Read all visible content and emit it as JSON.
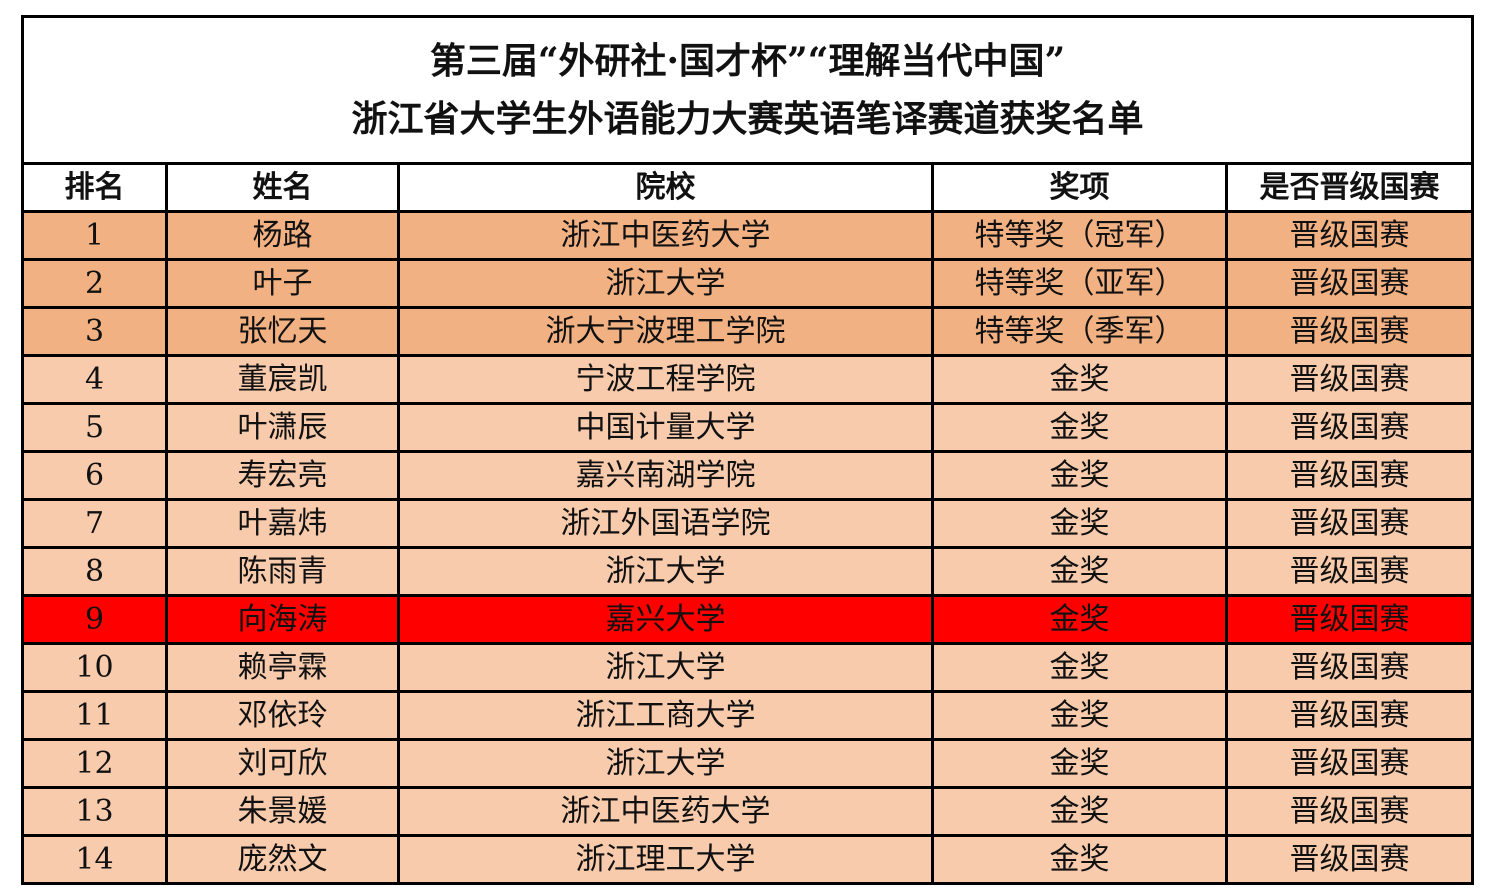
{
  "title": {
    "line1": "第三届“外研社·国才杯”“理解当代中国”",
    "line2": "浙江省大学生外语能力大赛英语笔译赛道获奖名单"
  },
  "columns": [
    "排名",
    "姓名",
    "院校",
    "奖项",
    "是否晋级国赛"
  ],
  "colors": {
    "top3": "#f2b183",
    "normal": "#f8cbad",
    "highlight": "#fe0000"
  },
  "rows": [
    {
      "rank": "1",
      "name": "杨路",
      "school": "浙江中医药大学",
      "award": "特等奖（冠军）",
      "advance": "晋级国赛",
      "style": "top"
    },
    {
      "rank": "2",
      "name": "叶子",
      "school": "浙江大学",
      "award": "特等奖（亚军）",
      "advance": "晋级国赛",
      "style": "top"
    },
    {
      "rank": "3",
      "name": "张忆天",
      "school": "浙大宁波理工学院",
      "award": "特等奖（季军）",
      "advance": "晋级国赛",
      "style": "top"
    },
    {
      "rank": "4",
      "name": "董宸凯",
      "school": "宁波工程学院",
      "award": "金奖",
      "advance": "晋级国赛",
      "style": "norm"
    },
    {
      "rank": "5",
      "name": "叶潇辰",
      "school": "中国计量大学",
      "award": "金奖",
      "advance": "晋级国赛",
      "style": "norm"
    },
    {
      "rank": "6",
      "name": "寿宏亮",
      "school": "嘉兴南湖学院",
      "award": "金奖",
      "advance": "晋级国赛",
      "style": "norm"
    },
    {
      "rank": "7",
      "name": "叶嘉炜",
      "school": "浙江外国语学院",
      "award": "金奖",
      "advance": "晋级国赛",
      "style": "norm"
    },
    {
      "rank": "8",
      "name": "陈雨青",
      "school": "浙江大学",
      "award": "金奖",
      "advance": "晋级国赛",
      "style": "norm"
    },
    {
      "rank": "9",
      "name": "向海涛",
      "school": "嘉兴大学",
      "award": "金奖",
      "advance": "晋级国赛",
      "style": "hl"
    },
    {
      "rank": "10",
      "name": "赖亭霖",
      "school": "浙江大学",
      "award": "金奖",
      "advance": "晋级国赛",
      "style": "norm"
    },
    {
      "rank": "11",
      "name": "邓依玲",
      "school": "浙江工商大学",
      "award": "金奖",
      "advance": "晋级国赛",
      "style": "norm"
    },
    {
      "rank": "12",
      "name": "刘可欣",
      "school": "浙江大学",
      "award": "金奖",
      "advance": "晋级国赛",
      "style": "norm"
    },
    {
      "rank": "13",
      "name": "朱景媛",
      "school": "浙江中医药大学",
      "award": "金奖",
      "advance": "晋级国赛",
      "style": "norm"
    },
    {
      "rank": "14",
      "name": "庞然文",
      "school": "浙江理工大学",
      "award": "金奖",
      "advance": "晋级国赛",
      "style": "norm"
    }
  ]
}
